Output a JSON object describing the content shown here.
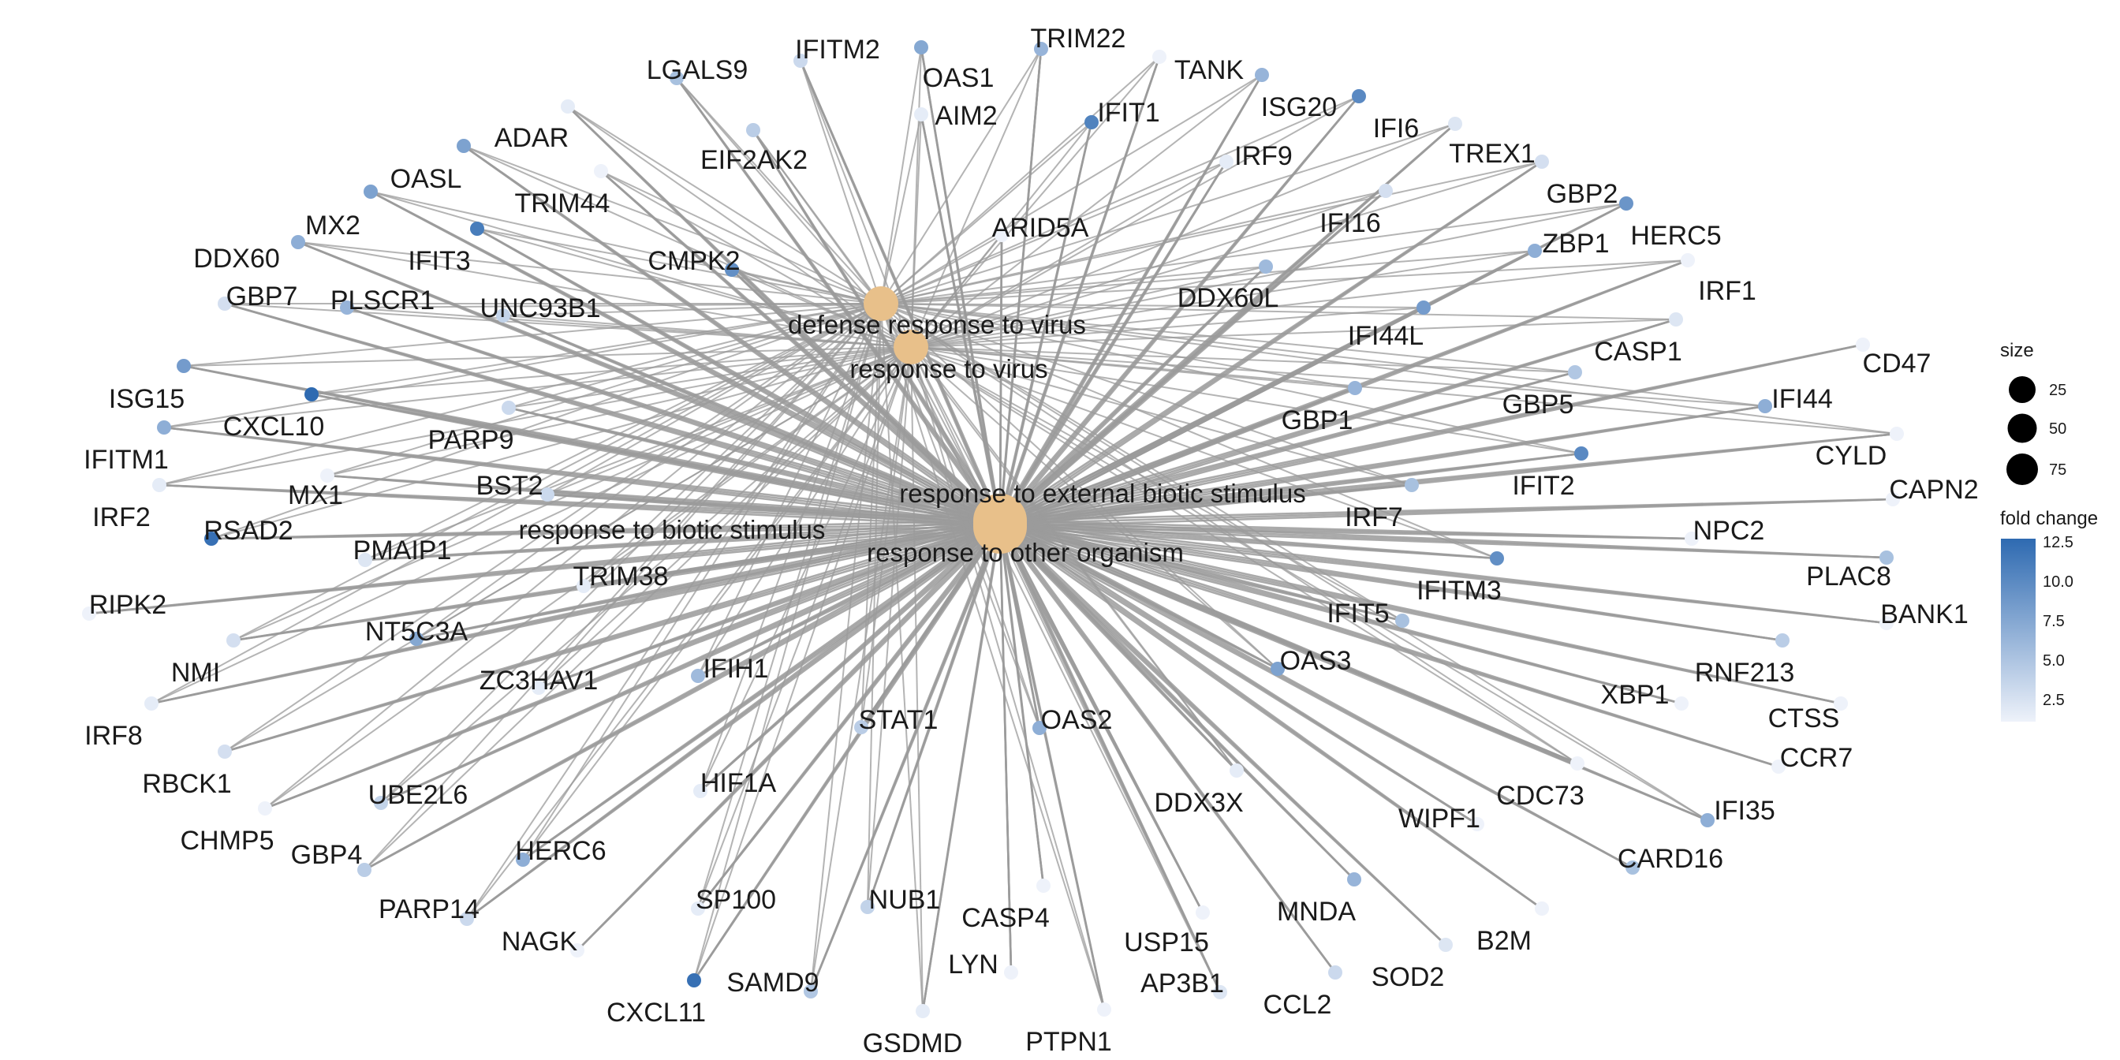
{
  "diagram": {
    "type": "gene-concept-network",
    "terms": [
      {
        "id": "defense",
        "label": "defense response to virus"
      },
      {
        "id": "virus",
        "label": "response to virus"
      },
      {
        "id": "external",
        "label": "response to external biotic stimulus"
      },
      {
        "id": "biotic",
        "label": "response to biotic stimulus"
      },
      {
        "id": "organism",
        "label": "response to other organism"
      }
    ],
    "genes": [
      {
        "name": "IFITM2",
        "fc": 3.5,
        "terms": [
          "defense",
          "virus",
          "external",
          "biotic",
          "organism"
        ]
      },
      {
        "name": "OAS1",
        "fc": 7.5,
        "terms": [
          "defense",
          "virus",
          "external",
          "biotic",
          "organism"
        ]
      },
      {
        "name": "TRIM22",
        "fc": 6.5,
        "terms": [
          "defense",
          "virus",
          "external",
          "biotic",
          "organism"
        ]
      },
      {
        "name": "TANK",
        "fc": 1.5,
        "terms": [
          "defense",
          "virus",
          "external",
          "biotic",
          "organism"
        ]
      },
      {
        "name": "LGALS9",
        "fc": 5.5,
        "terms": [
          "defense",
          "virus",
          "external",
          "biotic",
          "organism"
        ]
      },
      {
        "name": "AIM2",
        "fc": 2.0,
        "terms": [
          "defense",
          "virus",
          "external",
          "biotic",
          "organism"
        ]
      },
      {
        "name": "ISG20",
        "fc": 6.5,
        "terms": [
          "defense",
          "virus",
          "external",
          "biotic",
          "organism"
        ]
      },
      {
        "name": "IFI6",
        "fc": 10.0,
        "terms": [
          "defense",
          "virus",
          "external",
          "biotic",
          "organism"
        ]
      },
      {
        "name": "ADAR",
        "fc": 2.0,
        "terms": [
          "defense",
          "virus",
          "external",
          "biotic",
          "organism"
        ]
      },
      {
        "name": "IFIT1",
        "fc": 10.5,
        "terms": [
          "defense",
          "virus",
          "external",
          "biotic",
          "organism"
        ]
      },
      {
        "name": "EIF2AK2",
        "fc": 4.5,
        "terms": [
          "defense",
          "virus",
          "external",
          "biotic",
          "organism"
        ]
      },
      {
        "name": "TREX1",
        "fc": 2.5,
        "terms": [
          "defense",
          "virus",
          "external",
          "biotic",
          "organism"
        ]
      },
      {
        "name": "IRF9",
        "fc": 2.0,
        "terms": [
          "defense",
          "virus",
          "external",
          "biotic",
          "organism"
        ]
      },
      {
        "name": "OASL",
        "fc": 8.0,
        "terms": [
          "defense",
          "virus",
          "external",
          "biotic",
          "organism"
        ]
      },
      {
        "name": "TRIM44",
        "fc": 1.5,
        "terms": [
          "defense",
          "virus",
          "external",
          "biotic",
          "organism"
        ]
      },
      {
        "name": "GBP2",
        "fc": 3.0,
        "terms": [
          "defense",
          "virus",
          "external",
          "biotic",
          "organism"
        ]
      },
      {
        "name": "HERC5",
        "fc": 9.0,
        "terms": [
          "defense",
          "virus",
          "external",
          "biotic",
          "organism"
        ]
      },
      {
        "name": "MX2",
        "fc": 8.0,
        "terms": [
          "defense",
          "virus",
          "external",
          "biotic",
          "organism"
        ]
      },
      {
        "name": "ARID5A",
        "fc": 1.5,
        "terms": [
          "defense",
          "virus",
          "external",
          "biotic",
          "organism"
        ]
      },
      {
        "name": "IFI16",
        "fc": 3.0,
        "terms": [
          "defense",
          "virus",
          "external",
          "biotic",
          "organism"
        ]
      },
      {
        "name": "DDX60",
        "fc": 7.0,
        "terms": [
          "defense",
          "virus",
          "external",
          "biotic",
          "organism"
        ]
      },
      {
        "name": "IFIT3",
        "fc": 11.0,
        "terms": [
          "defense",
          "virus",
          "external",
          "biotic",
          "organism"
        ]
      },
      {
        "name": "CMPK2",
        "fc": 9.5,
        "terms": [
          "defense",
          "virus",
          "external",
          "biotic",
          "organism"
        ]
      },
      {
        "name": "ZBP1",
        "fc": 7.0,
        "terms": [
          "defense",
          "virus",
          "external",
          "biotic",
          "organism"
        ]
      },
      {
        "name": "IRF1",
        "fc": 1.5,
        "terms": [
          "defense",
          "virus",
          "external",
          "biotic",
          "organism"
        ]
      },
      {
        "name": "GBP7",
        "fc": 3.0,
        "terms": [
          "defense",
          "virus",
          "external",
          "biotic",
          "organism"
        ]
      },
      {
        "name": "PLSCR1",
        "fc": 6.5,
        "terms": [
          "defense",
          "virus",
          "external",
          "biotic",
          "organism"
        ]
      },
      {
        "name": "UNC93B1",
        "fc": 4.0,
        "terms": [
          "defense",
          "virus",
          "external",
          "biotic",
          "organism"
        ]
      },
      {
        "name": "DDX60L",
        "fc": 6.0,
        "terms": [
          "defense",
          "virus",
          "external",
          "biotic",
          "organism"
        ]
      },
      {
        "name": "IFI44L",
        "fc": 8.5,
        "terms": [
          "defense",
          "virus",
          "external",
          "biotic",
          "organism"
        ]
      },
      {
        "name": "CASP1",
        "fc": 2.5,
        "terms": [
          "defense",
          "virus",
          "external",
          "biotic",
          "organism"
        ]
      },
      {
        "name": "CD47",
        "fc": 1.5,
        "terms": [
          "external",
          "biotic",
          "organism"
        ]
      },
      {
        "name": "ISG15",
        "fc": 8.5,
        "terms": [
          "defense",
          "virus",
          "external",
          "biotic",
          "organism"
        ]
      },
      {
        "name": "CXCL10",
        "fc": 12.5,
        "terms": [
          "defense",
          "virus",
          "external",
          "biotic",
          "organism"
        ]
      },
      {
        "name": "GBP5",
        "fc": 5.0,
        "terms": [
          "defense",
          "virus",
          "external",
          "biotic",
          "organism"
        ]
      },
      {
        "name": "IFI44",
        "fc": 7.0,
        "terms": [
          "defense",
          "virus",
          "external",
          "biotic",
          "organism"
        ]
      },
      {
        "name": "IFITM1",
        "fc": 7.0,
        "terms": [
          "defense",
          "virus",
          "external",
          "biotic",
          "organism"
        ]
      },
      {
        "name": "PARP9",
        "fc": 3.5,
        "terms": [
          "defense",
          "virus",
          "external",
          "biotic",
          "organism"
        ]
      },
      {
        "name": "GBP1",
        "fc": 6.5,
        "terms": [
          "defense",
          "virus",
          "external",
          "biotic",
          "organism"
        ]
      },
      {
        "name": "CYLD",
        "fc": 1.5,
        "terms": [
          "defense",
          "virus",
          "external",
          "biotic",
          "organism"
        ]
      },
      {
        "name": "IFIT2",
        "fc": 10.0,
        "terms": [
          "defense",
          "virus",
          "external",
          "biotic",
          "organism"
        ]
      },
      {
        "name": "MX1",
        "fc": 1.5,
        "terms": [
          "defense",
          "virus",
          "external",
          "biotic",
          "organism"
        ]
      },
      {
        "name": "BST2",
        "fc": 3.5,
        "terms": [
          "defense",
          "virus",
          "external",
          "biotic",
          "organism"
        ]
      },
      {
        "name": "IRF2",
        "fc": 2.0,
        "terms": [
          "defense",
          "virus",
          "external",
          "biotic",
          "organism"
        ]
      },
      {
        "name": "CAPN2",
        "fc": 1.5,
        "terms": [
          "external",
          "biotic",
          "organism"
        ]
      },
      {
        "name": "IRF7",
        "fc": 5.5,
        "terms": [
          "defense",
          "virus",
          "external",
          "biotic",
          "organism"
        ]
      },
      {
        "name": "RSAD2",
        "fc": 12.0,
        "terms": [
          "defense",
          "virus",
          "external",
          "biotic",
          "organism"
        ]
      },
      {
        "name": "PMAIP1",
        "fc": 2.5,
        "terms": [
          "defense",
          "virus",
          "external",
          "biotic",
          "organism"
        ]
      },
      {
        "name": "NPC2",
        "fc": 1.5,
        "terms": [
          "external",
          "biotic",
          "organism"
        ]
      },
      {
        "name": "PLAC8",
        "fc": 5.5,
        "terms": [
          "external",
          "biotic",
          "organism"
        ]
      },
      {
        "name": "TRIM38",
        "fc": 2.0,
        "terms": [
          "defense",
          "virus",
          "external",
          "biotic",
          "organism"
        ]
      },
      {
        "name": "IFITM3",
        "fc": 9.5,
        "terms": [
          "defense",
          "virus",
          "external",
          "biotic",
          "organism"
        ]
      },
      {
        "name": "RIPK2",
        "fc": 1.5,
        "terms": [
          "external",
          "biotic",
          "organism"
        ]
      },
      {
        "name": "IFIT5",
        "fc": 5.5,
        "terms": [
          "defense",
          "virus",
          "external",
          "biotic",
          "organism"
        ]
      },
      {
        "name": "BANK1",
        "fc": 1.5,
        "terms": [
          "external",
          "biotic",
          "organism"
        ]
      },
      {
        "name": "NT5C3A",
        "fc": 7.5,
        "terms": [
          "defense",
          "virus",
          "external",
          "biotic",
          "organism"
        ]
      },
      {
        "name": "OAS3",
        "fc": 8.0,
        "terms": [
          "defense",
          "virus",
          "external",
          "biotic",
          "organism"
        ]
      },
      {
        "name": "NMI",
        "fc": 3.0,
        "terms": [
          "defense",
          "virus",
          "external",
          "biotic",
          "organism"
        ]
      },
      {
        "name": "RNF213",
        "fc": 4.5,
        "terms": [
          "external",
          "biotic",
          "organism"
        ]
      },
      {
        "name": "ZC3HAV1",
        "fc": 2.0,
        "terms": [
          "defense",
          "virus",
          "external",
          "biotic",
          "organism"
        ]
      },
      {
        "name": "IFIH1",
        "fc": 6.0,
        "terms": [
          "defense",
          "virus",
          "external",
          "biotic",
          "organism"
        ]
      },
      {
        "name": "XBP1",
        "fc": 1.5,
        "terms": [
          "external",
          "biotic",
          "organism"
        ]
      },
      {
        "name": "CTSS",
        "fc": 1.5,
        "terms": [
          "external",
          "biotic",
          "organism"
        ]
      },
      {
        "name": "IRF8",
        "fc": 2.0,
        "terms": [
          "defense",
          "virus",
          "external",
          "biotic",
          "organism"
        ]
      },
      {
        "name": "STAT1",
        "fc": 4.5,
        "terms": [
          "defense",
          "virus",
          "external",
          "biotic",
          "organism"
        ]
      },
      {
        "name": "OAS2",
        "fc": 7.0,
        "terms": [
          "defense",
          "virus",
          "external",
          "biotic",
          "organism"
        ]
      },
      {
        "name": "CCR7",
        "fc": 1.5,
        "terms": [
          "external",
          "biotic",
          "organism"
        ]
      },
      {
        "name": "RBCK1",
        "fc": 3.0,
        "terms": [
          "defense",
          "virus",
          "external",
          "biotic",
          "organism"
        ]
      },
      {
        "name": "CDC73",
        "fc": 1.5,
        "terms": [
          "defense",
          "virus",
          "external",
          "biotic",
          "organism"
        ]
      },
      {
        "name": "HIF1A",
        "fc": 2.0,
        "terms": [
          "defense",
          "virus",
          "external",
          "biotic",
          "organism"
        ]
      },
      {
        "name": "UBE2L6",
        "fc": 4.0,
        "terms": [
          "defense",
          "virus",
          "external",
          "biotic",
          "organism"
        ]
      },
      {
        "name": "DDX3X",
        "fc": 2.0,
        "terms": [
          "defense",
          "virus",
          "external",
          "biotic",
          "organism"
        ]
      },
      {
        "name": "CHMP5",
        "fc": 1.5,
        "terms": [
          "defense",
          "virus",
          "external",
          "biotic",
          "organism"
        ]
      },
      {
        "name": "IFI35",
        "fc": 7.0,
        "terms": [
          "defense",
          "virus",
          "external",
          "biotic",
          "organism"
        ]
      },
      {
        "name": "WIPF1",
        "fc": 1.5,
        "terms": [
          "external",
          "biotic",
          "organism"
        ]
      },
      {
        "name": "GBP4",
        "fc": 4.5,
        "terms": [
          "defense",
          "virus",
          "external",
          "biotic",
          "organism"
        ]
      },
      {
        "name": "HERC6",
        "fc": 7.0,
        "terms": [
          "defense",
          "virus",
          "external",
          "biotic",
          "organism"
        ]
      },
      {
        "name": "CARD16",
        "fc": 5.5,
        "terms": [
          "external",
          "biotic",
          "organism"
        ]
      },
      {
        "name": "SP100",
        "fc": 2.0,
        "terms": [
          "defense",
          "virus",
          "external",
          "biotic",
          "organism"
        ]
      },
      {
        "name": "NUB1",
        "fc": 4.0,
        "terms": [
          "defense",
          "virus",
          "external",
          "biotic",
          "organism"
        ]
      },
      {
        "name": "PARP14",
        "fc": 3.5,
        "terms": [
          "defense",
          "virus",
          "external",
          "biotic",
          "organism"
        ]
      },
      {
        "name": "CASP4",
        "fc": 1.5,
        "terms": [
          "external",
          "biotic",
          "organism"
        ]
      },
      {
        "name": "MNDA",
        "fc": 6.5,
        "terms": [
          "external",
          "biotic",
          "organism"
        ]
      },
      {
        "name": "NAGK",
        "fc": 1.5,
        "terms": [
          "external",
          "biotic",
          "organism"
        ]
      },
      {
        "name": "B2M",
        "fc": 1.5,
        "terms": [
          "external",
          "biotic",
          "organism"
        ]
      },
      {
        "name": "USP15",
        "fc": 1.5,
        "terms": [
          "defense",
          "virus",
          "external",
          "biotic",
          "organism"
        ]
      },
      {
        "name": "SOD2",
        "fc": 2.5,
        "terms": [
          "external",
          "biotic",
          "organism"
        ]
      },
      {
        "name": "LYN",
        "fc": 1.5,
        "terms": [
          "external",
          "biotic",
          "organism"
        ]
      },
      {
        "name": "AP3B1",
        "fc": 2.5,
        "terms": [
          "defense",
          "virus",
          "external",
          "biotic",
          "organism"
        ]
      },
      {
        "name": "CCL2",
        "fc": 3.5,
        "terms": [
          "external",
          "biotic",
          "organism"
        ]
      },
      {
        "name": "SAMD9",
        "fc": 5.0,
        "terms": [
          "defense",
          "virus",
          "external",
          "biotic",
          "organism"
        ]
      },
      {
        "name": "CXCL11",
        "fc": 12.0,
        "terms": [
          "defense",
          "virus",
          "external",
          "biotic",
          "organism"
        ]
      },
      {
        "name": "GSDMD",
        "fc": 2.0,
        "terms": [
          "defense",
          "virus",
          "external",
          "biotic",
          "organism"
        ]
      },
      {
        "name": "PTPN1",
        "fc": 1.5,
        "terms": [
          "defense",
          "virus",
          "external",
          "biotic",
          "organism"
        ]
      }
    ]
  },
  "legend": {
    "size_title": "size",
    "size_entries": [
      "25",
      "50",
      "75"
    ],
    "color_title": "fold change",
    "color_ticks": [
      "12.5",
      "10.0",
      "7.5",
      "5.0",
      "2.5"
    ],
    "color_range": [
      1.5,
      12.5
    ],
    "color_low": "#eef2fa",
    "color_high": "#2e6ab1",
    "term_node_color": "#e8c08a",
    "edge_color": "#9b9b9b"
  }
}
